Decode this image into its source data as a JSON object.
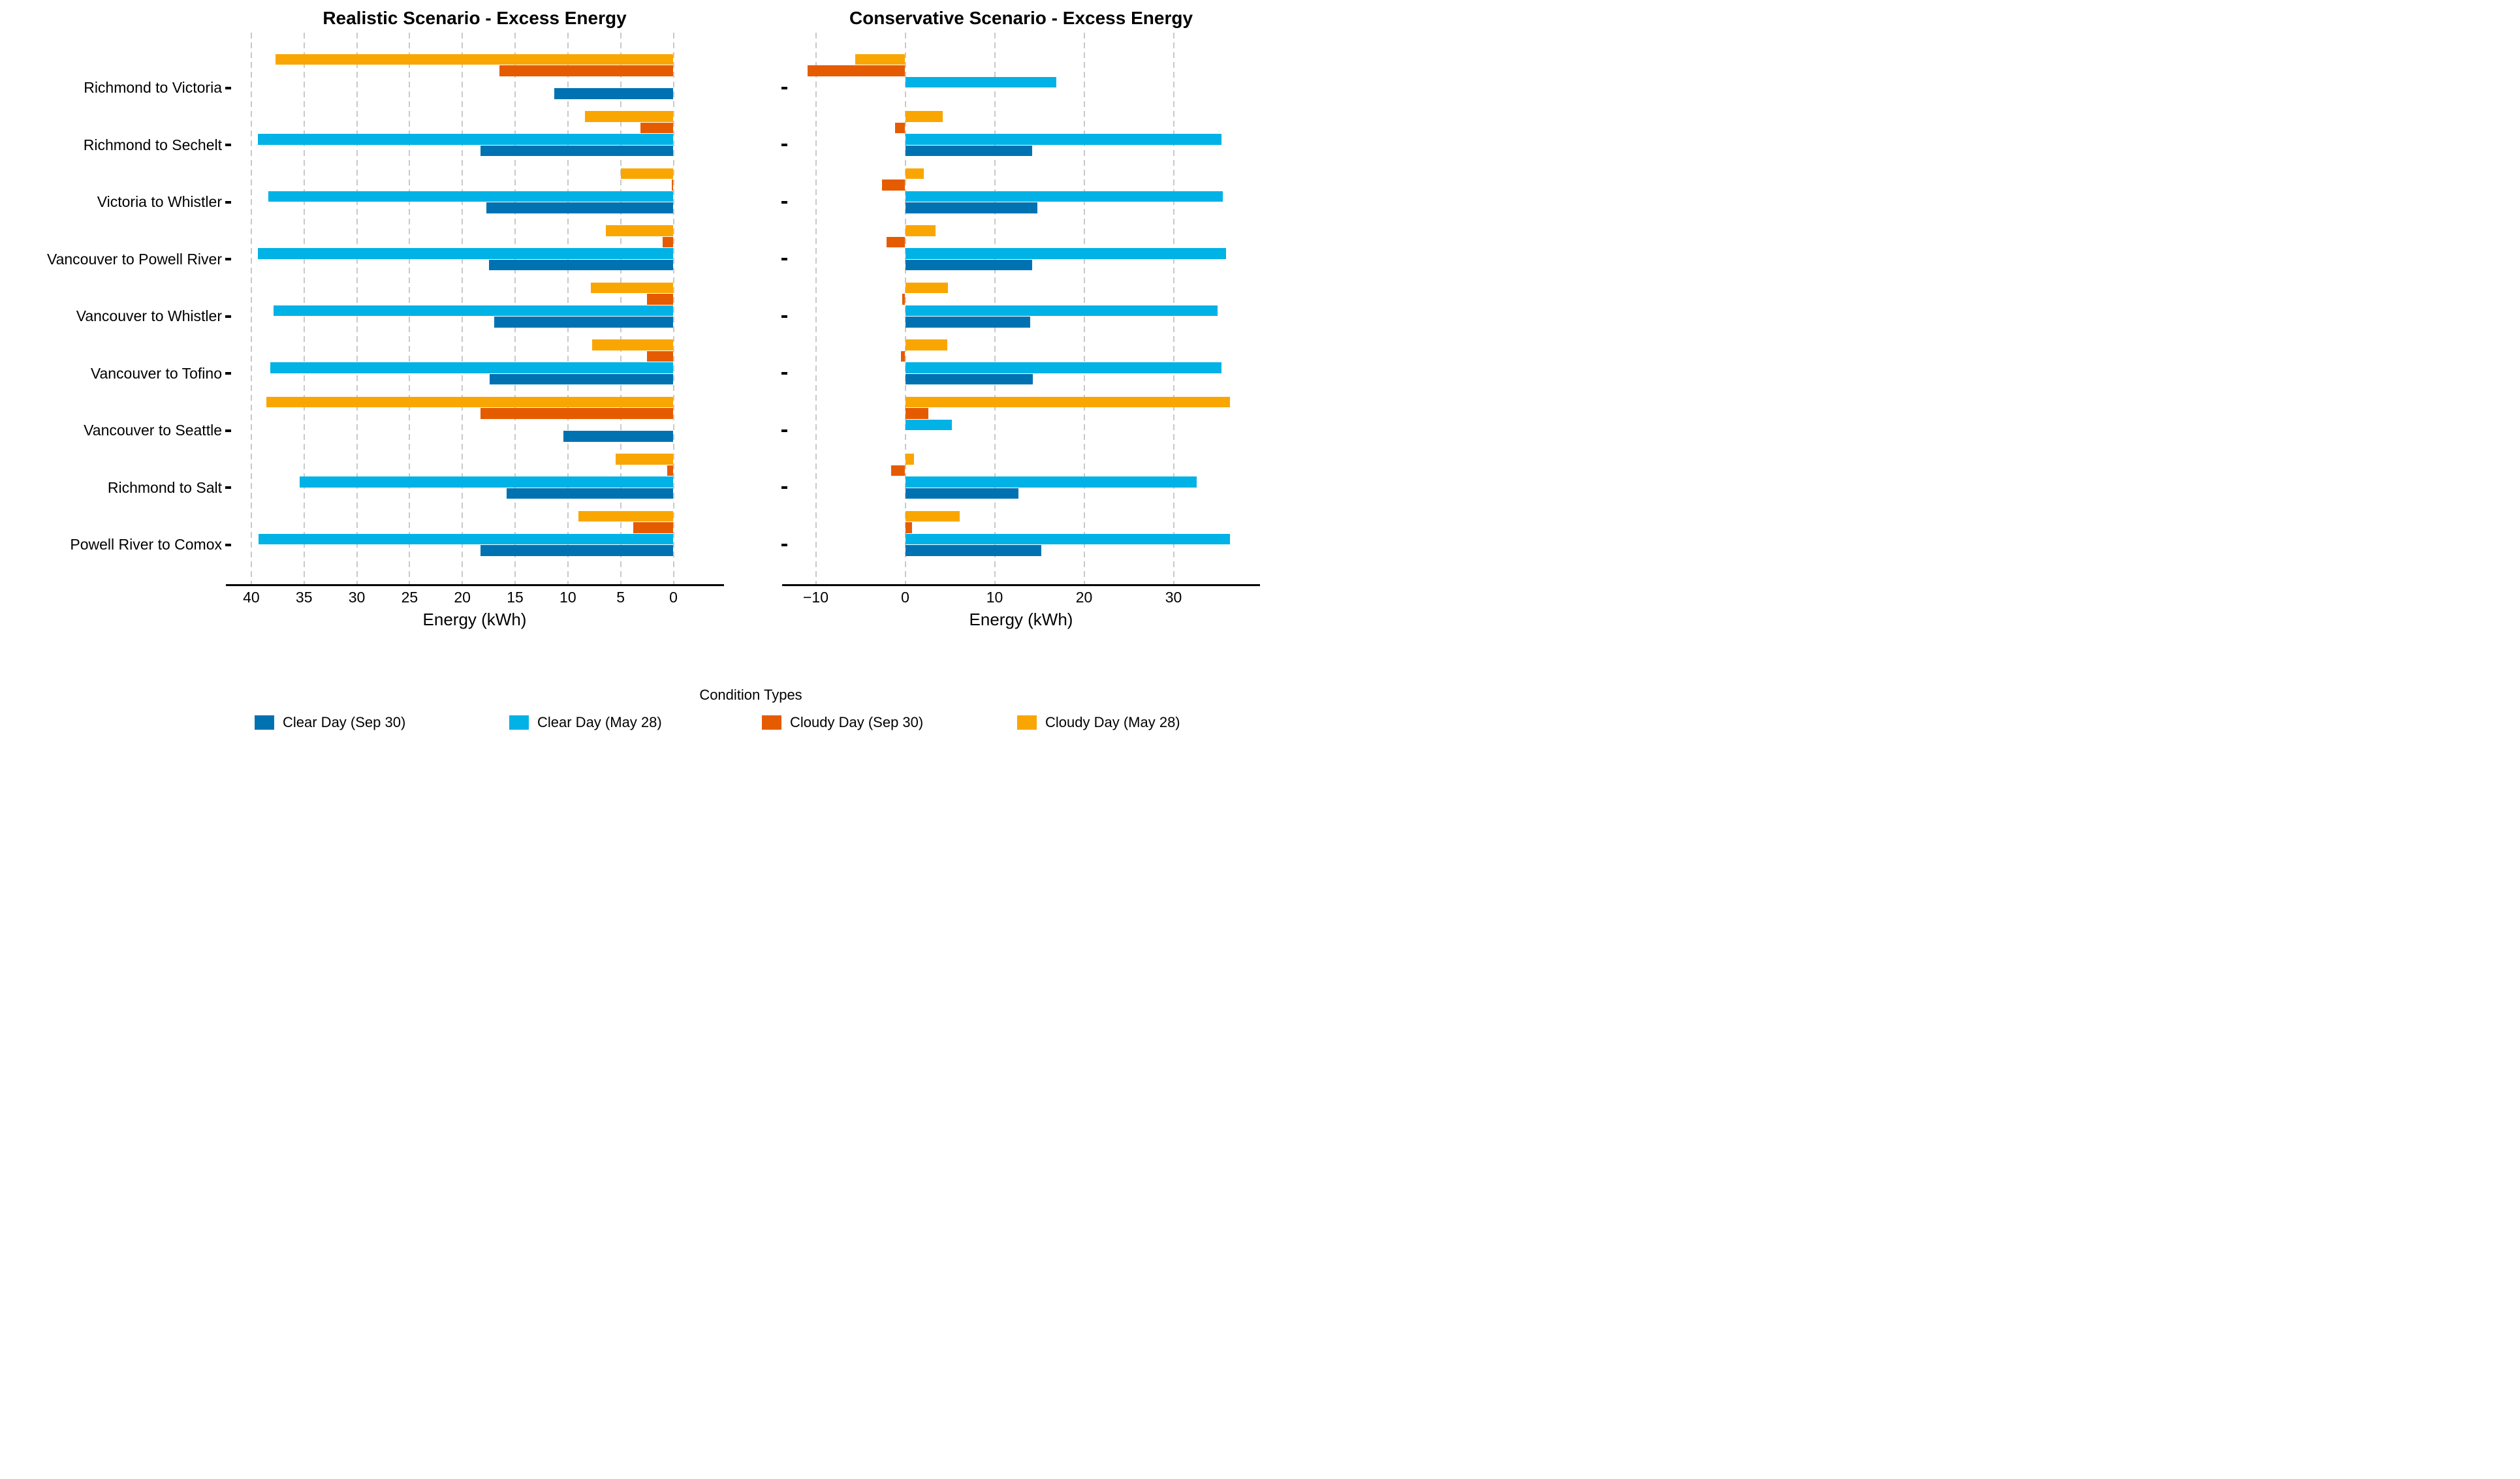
{
  "titles": {
    "left": "Realistic Scenario - Excess Energy",
    "right": "Conservative Scenario - Excess Energy"
  },
  "colors": {
    "blue": "#0072B2",
    "cyan": "#00B2E5",
    "red": "#E55C00",
    "orange": "#F9A602",
    "gridline": "#c9c9c9",
    "axis": "#000000"
  },
  "legend": {
    "title": "Condition Types",
    "items": [
      {
        "label": "Clear Day (Sep 30)",
        "color": "blue"
      },
      {
        "label": "Clear Day (May 28)",
        "color": "cyan"
      },
      {
        "label": "Cloudy Day (Sep 30)",
        "color": "red"
      },
      {
        "label": "Cloudy Day (May 28)",
        "color": "orange"
      }
    ]
  },
  "chart_data": [
    {
      "type": "bar",
      "orientation": "horizontal",
      "title": "Realistic Scenario - Excess Energy",
      "xlabel": "Energy (kWh)",
      "x_ticks": [
        40,
        35,
        30,
        25,
        20,
        15,
        10,
        5,
        0
      ],
      "x_axis_reversed": true,
      "xlim": [
        42,
        -4.2
      ],
      "grid": "vertical-dashed",
      "legend_position": "bottom",
      "categories": [
        "Richmond to Victoria",
        "Richmond to Sechelt",
        "Victoria to Whistler",
        "Vancouver to Powell River",
        "Vancouver to Whistler",
        "Vancouver to Tofino",
        "Vancouver to Seattle",
        "Richmond to Salt",
        "Powell River to Comox"
      ],
      "series": [
        {
          "name": "Clear Day (Sep 30)",
          "color": "blue",
          "values": [
            11.3,
            18.3,
            17.7,
            17.5,
            17.0,
            17.4,
            10.4,
            15.8,
            18.3
          ]
        },
        {
          "name": "Clear Day (May 28)",
          "color": "cyan",
          "values": [
            0,
            39.4,
            38.4,
            39.4,
            37.9,
            38.2,
            0,
            35.4,
            39.3
          ]
        },
        {
          "name": "Cloudy Day (Sep 30)",
          "color": "red",
          "values": [
            16.5,
            3.1,
            0.15,
            1.0,
            2.5,
            2.5,
            18.3,
            0.6,
            3.8
          ]
        },
        {
          "name": "Cloudy Day (May 28)",
          "color": "orange",
          "values": [
            37.7,
            8.4,
            5.0,
            6.4,
            7.8,
            7.7,
            38.6,
            5.5,
            9.0
          ]
        }
      ]
    },
    {
      "type": "bar",
      "orientation": "horizontal",
      "title": "Conservative Scenario - Excess Energy",
      "xlabel": "Energy (kWh)",
      "x_ticks": [
        -10,
        0,
        10,
        20,
        30
      ],
      "x_axis_reversed": false,
      "xlim": [
        -13.1,
        39.1
      ],
      "grid": "vertical-dashed",
      "legend_position": "bottom",
      "categories": [
        "Richmond to Victoria",
        "Richmond to Sechelt",
        "Victoria to Whistler",
        "Vancouver to Powell River",
        "Vancouver to Whistler",
        "Vancouver to Tofino",
        "Vancouver to Seattle",
        "Richmond to Salt",
        "Powell River to Comox"
      ],
      "series": [
        {
          "name": "Clear Day (Sep 30)",
          "color": "blue",
          "values": [
            0,
            14.2,
            14.8,
            14.2,
            14.0,
            14.3,
            0,
            12.7,
            15.2
          ]
        },
        {
          "name": "Clear Day (May 28)",
          "color": "cyan",
          "values": [
            16.9,
            35.4,
            35.5,
            35.9,
            34.9,
            35.4,
            5.2,
            32.6,
            36.3
          ]
        },
        {
          "name": "Cloudy Day (Sep 30)",
          "color": "red",
          "values": [
            -10.9,
            -1.1,
            -2.6,
            -2.1,
            -0.3,
            -0.5,
            2.6,
            -1.6,
            0.8
          ]
        },
        {
          "name": "Cloudy Day (May 28)",
          "color": "orange",
          "values": [
            -5.6,
            4.2,
            2.1,
            3.4,
            4.8,
            4.7,
            36.3,
            1.0,
            6.1
          ]
        }
      ]
    }
  ]
}
